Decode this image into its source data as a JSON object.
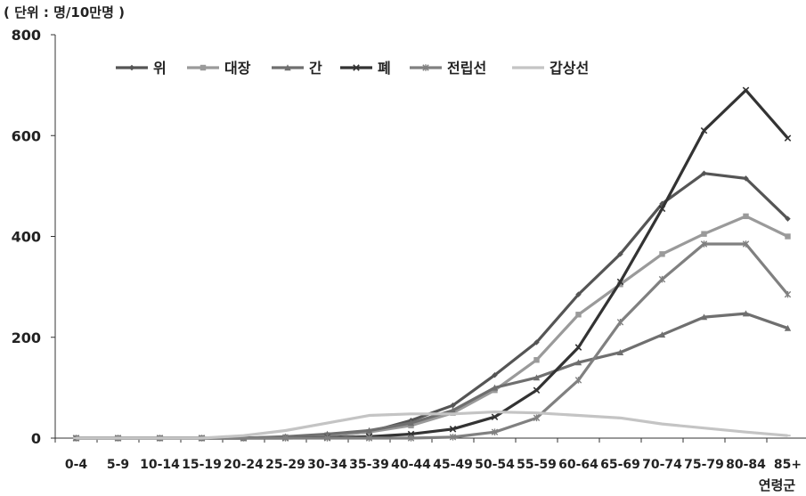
{
  "chart_data": {
    "type": "line",
    "unit_label": "( 단위 : 명/10만명 )",
    "xlabel": "연령군",
    "ylabel": "",
    "ylim": [
      0,
      800
    ],
    "yticks": [
      0,
      200,
      400,
      600,
      800
    ],
    "legend_position": "top-left",
    "grid": false,
    "categories": [
      "0-4",
      "5-9",
      "10-14",
      "15-19",
      "20-24",
      "25-29",
      "30-34",
      "35-39",
      "40-44",
      "45-49",
      "50-54",
      "55-59",
      "60-64",
      "65-69",
      "70-74",
      "75-79",
      "80-84",
      "85+"
    ],
    "series": [
      {
        "name": "위",
        "color": "#555555",
        "marker": "diamond",
        "values": [
          0,
          0,
          0,
          0,
          0,
          2,
          5,
          12,
          35,
          65,
          125,
          190,
          285,
          365,
          465,
          525,
          515,
          435
        ]
      },
      {
        "name": "대장",
        "color": "#9a9a9a",
        "marker": "square",
        "values": [
          0,
          0,
          0,
          0,
          0,
          2,
          6,
          12,
          25,
          50,
          95,
          155,
          245,
          305,
          365,
          405,
          440,
          400
        ]
      },
      {
        "name": "간",
        "color": "#6f6f6f",
        "marker": "triangle",
        "values": [
          0,
          0,
          0,
          0,
          0,
          3,
          8,
          15,
          30,
          55,
          100,
          120,
          150,
          170,
          205,
          240,
          247,
          218
        ]
      },
      {
        "name": "폐",
        "color": "#333333",
        "marker": "x",
        "values": [
          0,
          0,
          0,
          0,
          0,
          0,
          1,
          3,
          8,
          18,
          42,
          95,
          180,
          310,
          455,
          610,
          690,
          595
        ]
      },
      {
        "name": "전립선",
        "color": "#808080",
        "marker": "star",
        "values": [
          0,
          0,
          0,
          0,
          0,
          0,
          0,
          0,
          0,
          2,
          12,
          40,
          115,
          230,
          315,
          385,
          385,
          285
        ]
      },
      {
        "name": "갑상선",
        "color": "#c4c4c4",
        "marker": "dash",
        "values": [
          0,
          0,
          0,
          0,
          5,
          15,
          30,
          45,
          48,
          48,
          52,
          50,
          45,
          40,
          28,
          20,
          12,
          5
        ]
      }
    ]
  }
}
